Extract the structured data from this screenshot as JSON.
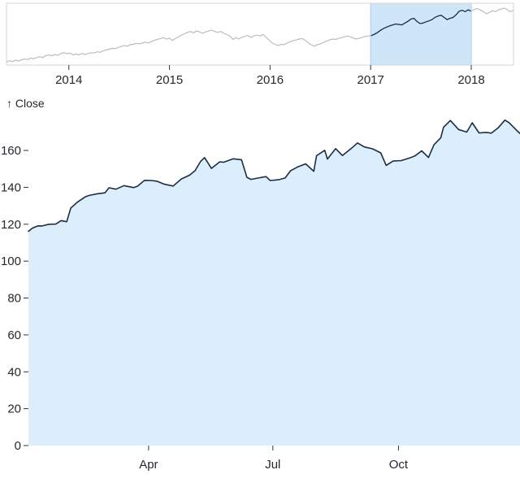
{
  "labels": {
    "y_axis_label": "↑ Close"
  },
  "chart_data": [
    {
      "id": "context",
      "type": "line",
      "title": "Context (brush) chart, full history 2013–2018",
      "x_domain": [
        2013.38,
        2018.42
      ],
      "y_domain": [
        50,
        190
      ],
      "x_ticks": [
        {
          "label": "2014",
          "value": 2014
        },
        {
          "label": "2015",
          "value": 2015
        },
        {
          "label": "2016",
          "value": 2016
        },
        {
          "label": "2017",
          "value": 2017
        },
        {
          "label": "2018",
          "value": 2018
        }
      ],
      "brush": {
        "start": 2017.0,
        "end": 2018.0
      },
      "colors": {
        "line": "#b9bdc1",
        "selected_line": "#1c2e45",
        "brush_fill": "#cfe6f8",
        "brush_edge": "#a8cdec",
        "border": "#d6d6d6",
        "axis_text": "#24292f",
        "tick": "#333333"
      },
      "series": [
        {
          "name": "Close",
          "points": [
            [
              2013.38,
              57
            ],
            [
              2013.41,
              60
            ],
            [
              2013.44,
              58
            ],
            [
              2013.47,
              61
            ],
            [
              2013.5,
              59
            ],
            [
              2013.53,
              62
            ],
            [
              2013.56,
              64
            ],
            [
              2013.59,
              62
            ],
            [
              2013.62,
              66
            ],
            [
              2013.65,
              64
            ],
            [
              2013.68,
              67
            ],
            [
              2013.71,
              69
            ],
            [
              2013.74,
              67
            ],
            [
              2013.77,
              71
            ],
            [
              2013.8,
              73
            ],
            [
              2013.83,
              71
            ],
            [
              2013.86,
              74
            ],
            [
              2013.89,
              72
            ],
            [
              2013.92,
              76
            ],
            [
              2013.95,
              78
            ],
            [
              2013.98,
              76
            ],
            [
              2014.01,
              77
            ],
            [
              2014.04,
              73
            ],
            [
              2014.07,
              75
            ],
            [
              2014.1,
              73
            ],
            [
              2014.13,
              76
            ],
            [
              2014.16,
              74
            ],
            [
              2014.19,
              76
            ],
            [
              2014.22,
              78
            ],
            [
              2014.25,
              77
            ],
            [
              2014.28,
              80
            ],
            [
              2014.31,
              79
            ],
            [
              2014.34,
              82
            ],
            [
              2014.37,
              84
            ],
            [
              2014.4,
              86
            ],
            [
              2014.43,
              88
            ],
            [
              2014.46,
              87
            ],
            [
              2014.49,
              90
            ],
            [
              2014.52,
              92
            ],
            [
              2014.55,
              94
            ],
            [
              2014.58,
              93
            ],
            [
              2014.61,
              96
            ],
            [
              2014.64,
              97
            ],
            [
              2014.67,
              99
            ],
            [
              2014.7,
              98
            ],
            [
              2014.73,
              100
            ],
            [
              2014.76,
              102
            ],
            [
              2014.79,
              100
            ],
            [
              2014.82,
              103
            ],
            [
              2014.85,
              106
            ],
            [
              2014.88,
              108
            ],
            [
              2014.91,
              110
            ],
            [
              2014.94,
              112
            ],
            [
              2014.97,
              109
            ],
            [
              2015.0,
              111
            ],
            [
              2015.03,
              106
            ],
            [
              2015.06,
              110
            ],
            [
              2015.09,
              114
            ],
            [
              2015.12,
              118
            ],
            [
              2015.15,
              121
            ],
            [
              2015.18,
              124
            ],
            [
              2015.21,
              126
            ],
            [
              2015.24,
              123
            ],
            [
              2015.27,
              127
            ],
            [
              2015.3,
              125
            ],
            [
              2015.33,
              122
            ],
            [
              2015.36,
              125
            ],
            [
              2015.39,
              127
            ],
            [
              2015.42,
              129
            ],
            [
              2015.45,
              126
            ],
            [
              2015.48,
              124
            ],
            [
              2015.51,
              126
            ],
            [
              2015.54,
              122
            ],
            [
              2015.57,
              119
            ],
            [
              2015.6,
              116
            ],
            [
              2015.63,
              108
            ],
            [
              2015.66,
              112
            ],
            [
              2015.69,
              109
            ],
            [
              2015.72,
              113
            ],
            [
              2015.75,
              115
            ],
            [
              2015.78,
              117
            ],
            [
              2015.81,
              113
            ],
            [
              2015.84,
              116
            ],
            [
              2015.87,
              118
            ],
            [
              2015.9,
              116
            ],
            [
              2015.93,
              119
            ],
            [
              2015.96,
              113
            ],
            [
              2015.99,
              107
            ],
            [
              2016.02,
              100
            ],
            [
              2016.05,
              97
            ],
            [
              2016.08,
              94
            ],
            [
              2016.11,
              97
            ],
            [
              2016.14,
              96
            ],
            [
              2016.17,
              100
            ],
            [
              2016.2,
              103
            ],
            [
              2016.23,
              105
            ],
            [
              2016.26,
              107
            ],
            [
              2016.29,
              109
            ],
            [
              2016.32,
              110
            ],
            [
              2016.35,
              106
            ],
            [
              2016.38,
              100
            ],
            [
              2016.41,
              96
            ],
            [
              2016.44,
              93
            ],
            [
              2016.47,
              96
            ],
            [
              2016.5,
              98
            ],
            [
              2016.53,
              101
            ],
            [
              2016.56,
              104
            ],
            [
              2016.59,
              107
            ],
            [
              2016.62,
              109
            ],
            [
              2016.65,
              108
            ],
            [
              2016.68,
              110
            ],
            [
              2016.71,
              112
            ],
            [
              2016.74,
              114
            ],
            [
              2016.77,
              116
            ],
            [
              2016.8,
              114
            ],
            [
              2016.83,
              111
            ],
            [
              2016.86,
              109
            ],
            [
              2016.89,
              111
            ],
            [
              2016.92,
              113
            ],
            [
              2016.95,
              115
            ],
            [
              2016.98,
              116
            ],
            [
              2017.01,
              117
            ],
            [
              2017.04,
              120
            ],
            [
              2017.07,
              124
            ],
            [
              2017.1,
              129
            ],
            [
              2017.13,
              133
            ],
            [
              2017.16,
              136
            ],
            [
              2017.19,
              139
            ],
            [
              2017.22,
              141
            ],
            [
              2017.25,
              143
            ],
            [
              2017.28,
              142
            ],
            [
              2017.31,
              141
            ],
            [
              2017.34,
              145
            ],
            [
              2017.37,
              149
            ],
            [
              2017.4,
              154
            ],
            [
              2017.43,
              156
            ],
            [
              2017.46,
              149
            ],
            [
              2017.49,
              144
            ],
            [
              2017.52,
              145
            ],
            [
              2017.55,
              148
            ],
            [
              2017.58,
              150
            ],
            [
              2017.61,
              153
            ],
            [
              2017.64,
              158
            ],
            [
              2017.67,
              161
            ],
            [
              2017.7,
              163
            ],
            [
              2017.73,
              158
            ],
            [
              2017.76,
              153
            ],
            [
              2017.79,
              156
            ],
            [
              2017.82,
              158
            ],
            [
              2017.85,
              164
            ],
            [
              2017.88,
              172
            ],
            [
              2017.91,
              174
            ],
            [
              2017.94,
              171
            ],
            [
              2017.97,
              175
            ],
            [
              2018.0,
              172
            ],
            [
              2018.03,
              176
            ],
            [
              2018.06,
              178
            ],
            [
              2018.09,
              175
            ],
            [
              2018.12,
              171
            ],
            [
              2018.15,
              166
            ],
            [
              2018.18,
              169
            ],
            [
              2018.21,
              173
            ],
            [
              2018.24,
              171
            ],
            [
              2018.27,
              175
            ],
            [
              2018.3,
              177
            ],
            [
              2018.33,
              179
            ],
            [
              2018.36,
              175
            ],
            [
              2018.39,
              171
            ],
            [
              2018.42,
              174
            ]
          ]
        }
      ]
    },
    {
      "id": "focus",
      "type": "area",
      "title": "Close price, 2017 (brushed selection)",
      "ylabel": "↑ Close",
      "y_domain": [
        0,
        160
      ],
      "y_ticks": [
        0,
        20,
        40,
        60,
        80,
        100,
        120,
        140,
        160
      ],
      "x_ticks": [
        {
          "label": "Apr",
          "date": "2017-04-01"
        },
        {
          "label": "Jul",
          "date": "2017-07-01"
        },
        {
          "label": "Oct",
          "date": "2017-10-01"
        }
      ],
      "colors": {
        "area": "#dceefb",
        "line": "#1c2e45",
        "axis_text": "#24292f",
        "tick": "#333333"
      },
      "series": [
        {
          "name": "Close",
          "points": [
            [
              "2017-01-03",
              116.15
            ],
            [
              "2017-01-06",
              117.91
            ],
            [
              "2017-01-10",
              119.11
            ],
            [
              "2017-01-13",
              119.04
            ],
            [
              "2017-01-18",
              119.99
            ],
            [
              "2017-01-23",
              120.08
            ],
            [
              "2017-01-27",
              121.95
            ],
            [
              "2017-01-31",
              121.35
            ],
            [
              "2017-02-03",
              128.75
            ],
            [
              "2017-02-08",
              132.04
            ],
            [
              "2017-02-14",
              135.02
            ],
            [
              "2017-02-17",
              135.72
            ],
            [
              "2017-02-23",
              136.53
            ],
            [
              "2017-02-28",
              136.99
            ],
            [
              "2017-03-03",
              139.78
            ],
            [
              "2017-03-08",
              138.99
            ],
            [
              "2017-03-14",
              140.91
            ],
            [
              "2017-03-21",
              139.84
            ],
            [
              "2017-03-24",
              140.64
            ],
            [
              "2017-03-29",
              143.8
            ],
            [
              "2017-04-03",
              143.7
            ],
            [
              "2017-04-07",
              143.34
            ],
            [
              "2017-04-12",
              141.8
            ],
            [
              "2017-04-19",
              140.68
            ],
            [
              "2017-04-25",
              144.53
            ],
            [
              "2017-05-01",
              146.58
            ],
            [
              "2017-05-05",
              148.96
            ],
            [
              "2017-05-09",
              153.99
            ],
            [
              "2017-05-12",
              156.1
            ],
            [
              "2017-05-17",
              150.25
            ],
            [
              "2017-05-23",
              153.8
            ],
            [
              "2017-05-26",
              153.61
            ],
            [
              "2017-06-02",
              155.45
            ],
            [
              "2017-06-08",
              154.99
            ],
            [
              "2017-06-12",
              145.42
            ],
            [
              "2017-06-15",
              144.29
            ],
            [
              "2017-06-20",
              145.01
            ],
            [
              "2017-06-26",
              145.82
            ],
            [
              "2017-06-29",
              143.68
            ],
            [
              "2017-07-05",
              144.09
            ],
            [
              "2017-07-10",
              145.06
            ],
            [
              "2017-07-14",
              149.04
            ],
            [
              "2017-07-19",
              151.02
            ],
            [
              "2017-07-25",
              152.74
            ],
            [
              "2017-07-31",
              148.73
            ],
            [
              "2017-08-02",
              157.14
            ],
            [
              "2017-08-08",
              160.08
            ],
            [
              "2017-08-10",
              155.32
            ],
            [
              "2017-08-16",
              160.95
            ],
            [
              "2017-08-21",
              157.21
            ],
            [
              "2017-08-28",
              161.47
            ],
            [
              "2017-09-01",
              164.05
            ],
            [
              "2017-09-06",
              161.91
            ],
            [
              "2017-09-12",
              160.86
            ],
            [
              "2017-09-18",
              158.67
            ],
            [
              "2017-09-22",
              151.89
            ],
            [
              "2017-09-27",
              154.23
            ],
            [
              "2017-10-03",
              154.48
            ],
            [
              "2017-10-09",
              155.84
            ],
            [
              "2017-10-13",
              156.99
            ],
            [
              "2017-10-18",
              159.76
            ],
            [
              "2017-10-23",
              156.17
            ],
            [
              "2017-10-27",
              163.05
            ],
            [
              "2017-11-01",
              166.89
            ],
            [
              "2017-11-03",
              172.5
            ],
            [
              "2017-11-08",
              176.24
            ],
            [
              "2017-11-14",
              171.34
            ],
            [
              "2017-11-20",
              169.98
            ],
            [
              "2017-11-24",
              174.97
            ],
            [
              "2017-11-29",
              169.48
            ],
            [
              "2017-12-04",
              169.8
            ],
            [
              "2017-12-08",
              169.37
            ],
            [
              "2017-12-13",
              172.27
            ],
            [
              "2017-12-18",
              176.42
            ],
            [
              "2017-12-21",
              175.01
            ],
            [
              "2017-12-27",
              170.6
            ],
            [
              "2017-12-29",
              169.23
            ]
          ]
        }
      ]
    }
  ]
}
